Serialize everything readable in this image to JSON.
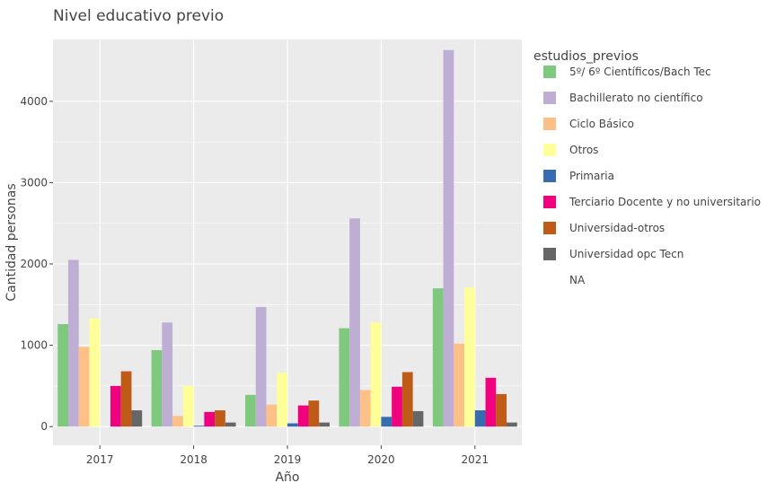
{
  "chart_data": {
    "type": "bar",
    "title": "Nivel educativo previo",
    "xlabel": "Año",
    "ylabel": "Cantidad personas",
    "ylim": [
      -230,
      4760
    ],
    "yticks": [
      0,
      1000,
      2000,
      3000,
      4000
    ],
    "ytick_labels": [
      "0",
      "1000",
      "2000",
      "3000",
      "4000"
    ],
    "grid": true,
    "legend_position": "right",
    "categories": [
      "2017",
      "2018",
      "2019",
      "2020",
      "2021"
    ],
    "legend": {
      "title": "estudios_previos",
      "entries": [
        "5º/ 6º Científicos/Bach Tec",
        "Bachillerato no científico",
        "Ciclo Básico",
        "Otros",
        "Primaria",
        "Terciario Docente y no universitario",
        "Universidad-otros",
        "Universidad opc Tecn",
        "NA"
      ]
    },
    "series": [
      {
        "name": "5º/ 6º Científicos/Bach Tec",
        "color": "#7fc97f",
        "values": [
          1260,
          940,
          390,
          1210,
          1700
        ]
      },
      {
        "name": "Bachillerato no científico",
        "color": "#beaed4",
        "values": [
          2050,
          1280,
          1470,
          2560,
          4630
        ]
      },
      {
        "name": "Ciclo Básico",
        "color": "#fdc086",
        "values": [
          980,
          130,
          270,
          450,
          1020
        ]
      },
      {
        "name": "Otros",
        "color": "#ffff99",
        "values": [
          1330,
          500,
          660,
          1280,
          1710
        ]
      },
      {
        "name": "Primaria",
        "color": "#386cb0",
        "values": [
          0,
          10,
          40,
          120,
          200
        ]
      },
      {
        "name": "Terciario Docente y no universitario",
        "color": "#f0027f",
        "values": [
          500,
          180,
          260,
          490,
          600
        ]
      },
      {
        "name": "Universidad-otros",
        "color": "#bf5b17",
        "values": [
          680,
          200,
          320,
          670,
          400
        ]
      },
      {
        "name": "Universidad opc Tecn",
        "color": "#666666",
        "values": [
          200,
          50,
          50,
          190,
          50
        ]
      },
      {
        "name": "NA",
        "color": "#ffffff",
        "values": [
          0,
          0,
          0,
          0,
          0
        ]
      }
    ]
  }
}
